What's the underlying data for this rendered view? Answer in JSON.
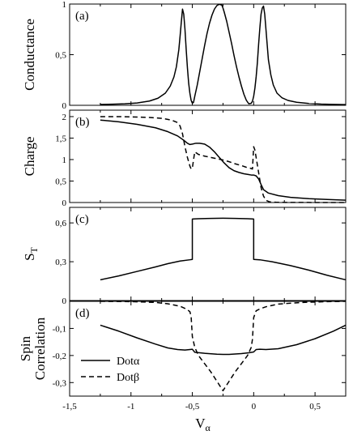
{
  "chart_data": [
    {
      "type": "line",
      "panel_label": "(a)",
      "ylabel": "Conductance",
      "xlim": [
        -1.5,
        0.75
      ],
      "ylim": [
        0,
        1
      ],
      "yticks": [
        0,
        0.5,
        1
      ],
      "ytick_labels": [
        "0",
        "0,5",
        "1"
      ],
      "series": [
        {
          "style": "solid",
          "x": [
            -1.25,
            -1.15,
            -1.05,
            -0.95,
            -0.85,
            -0.78,
            -0.72,
            -0.68,
            -0.65,
            -0.63,
            -0.61,
            -0.6,
            -0.59,
            -0.58,
            -0.57,
            -0.56,
            -0.55,
            -0.54,
            -0.53,
            -0.52,
            -0.51,
            -0.5,
            -0.49,
            -0.48,
            -0.46,
            -0.44,
            -0.42,
            -0.4,
            -0.38,
            -0.36,
            -0.34,
            -0.32,
            -0.3,
            -0.28,
            -0.26,
            -0.25,
            -0.24,
            -0.22,
            -0.2,
            -0.18,
            -0.16,
            -0.14,
            -0.12,
            -0.1,
            -0.08,
            -0.06,
            -0.04,
            -0.02,
            -0.01,
            0.0,
            0.01,
            0.02,
            0.03,
            0.04,
            0.05,
            0.06,
            0.07,
            0.08,
            0.09,
            0.1,
            0.11,
            0.12,
            0.14,
            0.16,
            0.19,
            0.23,
            0.28,
            0.35,
            0.45,
            0.55,
            0.65,
            0.75
          ],
          "y": [
            0.008,
            0.011,
            0.015,
            0.023,
            0.042,
            0.07,
            0.12,
            0.19,
            0.28,
            0.38,
            0.55,
            0.68,
            0.82,
            0.95,
            0.9,
            0.75,
            0.55,
            0.37,
            0.22,
            0.12,
            0.05,
            0.02,
            0.03,
            0.09,
            0.2,
            0.33,
            0.46,
            0.59,
            0.71,
            0.81,
            0.89,
            0.95,
            0.985,
            0.998,
            0.99,
            0.96,
            0.92,
            0.83,
            0.72,
            0.61,
            0.49,
            0.38,
            0.28,
            0.19,
            0.11,
            0.05,
            0.015,
            0.02,
            0.04,
            0.09,
            0.17,
            0.28,
            0.42,
            0.6,
            0.76,
            0.9,
            0.96,
            0.98,
            0.9,
            0.75,
            0.6,
            0.45,
            0.3,
            0.2,
            0.12,
            0.075,
            0.048,
            0.03,
            0.018,
            0.012,
            0.009,
            0.007
          ]
        }
      ]
    },
    {
      "type": "line",
      "panel_label": "(b)",
      "ylabel": "Charge",
      "xlim": [
        -1.5,
        0.75
      ],
      "ylim": [
        0,
        2.15
      ],
      "yticks": [
        0,
        0.5,
        1,
        1.5,
        2
      ],
      "ytick_labels": [
        "0",
        "0,5",
        "1",
        "1,5",
        "2"
      ],
      "series": [
        {
          "name": "Dotα",
          "style": "solid",
          "x": [
            -1.25,
            -1.1,
            -0.95,
            -0.8,
            -0.7,
            -0.62,
            -0.57,
            -0.54,
            -0.52,
            -0.5,
            -0.47,
            -0.44,
            -0.4,
            -0.36,
            -0.32,
            -0.28,
            -0.24,
            -0.2,
            -0.16,
            -0.12,
            -0.08,
            -0.04,
            -0.02,
            0.0,
            0.02,
            0.04,
            0.06,
            0.08,
            0.12,
            0.2,
            0.3,
            0.45,
            0.6,
            0.75
          ],
          "y": [
            1.92,
            1.88,
            1.82,
            1.74,
            1.65,
            1.55,
            1.45,
            1.38,
            1.35,
            1.36,
            1.38,
            1.38,
            1.36,
            1.29,
            1.18,
            1.05,
            0.92,
            0.81,
            0.74,
            0.7,
            0.67,
            0.65,
            0.64,
            0.64,
            0.62,
            0.55,
            0.42,
            0.3,
            0.22,
            0.16,
            0.12,
            0.09,
            0.07,
            0.055
          ]
        },
        {
          "name": "Dotβ",
          "style": "dashed",
          "x": [
            -1.25,
            -1.1,
            -0.95,
            -0.85,
            -0.75,
            -0.67,
            -0.62,
            -0.6,
            -0.58,
            -0.56,
            -0.54,
            -0.52,
            -0.51,
            -0.5,
            -0.49,
            -0.48,
            -0.45,
            -0.4,
            -0.35,
            -0.3,
            -0.25,
            -0.2,
            -0.15,
            -0.1,
            -0.06,
            -0.03,
            -0.01,
            0.0,
            0.01,
            0.02,
            0.04,
            0.06,
            0.08,
            0.1,
            0.13,
            0.18,
            0.25,
            0.35,
            0.5,
            0.75
          ],
          "y": [
            2.0,
            2.0,
            1.99,
            1.98,
            1.96,
            1.92,
            1.86,
            1.78,
            1.6,
            1.3,
            1.05,
            0.85,
            0.78,
            0.8,
            1.0,
            1.18,
            1.12,
            1.08,
            1.05,
            1.02,
            0.99,
            0.95,
            0.9,
            0.86,
            0.82,
            0.8,
            0.78,
            1.3,
            1.22,
            1.05,
            0.7,
            0.35,
            0.15,
            0.05,
            0.015,
            0.006,
            0.003,
            0.002,
            0.001,
            0.0
          ]
        }
      ]
    },
    {
      "type": "line",
      "panel_label": "(c)",
      "ylabel": "S",
      "ylabel_sub": "T",
      "xlim": [
        -1.5,
        0.75
      ],
      "ylim": [
        0,
        0.72
      ],
      "yticks": [
        0,
        0.3,
        0.6
      ],
      "ytick_labels": [
        "0",
        "0,3",
        "0,6"
      ],
      "series": [
        {
          "style": "solid",
          "x": [
            -1.25,
            -1.1,
            -0.95,
            -0.8,
            -0.7,
            -0.6,
            -0.52,
            -0.5,
            -0.5,
            -0.45,
            -0.35,
            -0.25,
            -0.15,
            -0.05,
            0.0,
            0.0,
            0.05,
            0.15,
            0.3,
            0.45,
            0.6,
            0.75
          ],
          "y": [
            0.16,
            0.19,
            0.225,
            0.26,
            0.285,
            0.305,
            0.315,
            0.318,
            0.63,
            0.632,
            0.635,
            0.636,
            0.635,
            0.632,
            0.63,
            0.318,
            0.315,
            0.3,
            0.27,
            0.235,
            0.195,
            0.16
          ]
        }
      ]
    },
    {
      "type": "line",
      "panel_label": "(d)",
      "ylabel": "Spin",
      "ylabel2": "Correlation",
      "xlabel": "V",
      "xlabel_sub": "α",
      "xlim": [
        -1.5,
        0.75
      ],
      "ylim": [
        -0.35,
        0.0
      ],
      "yticks": [
        -0.3,
        -0.2,
        -0.1
      ],
      "ytick_labels": [
        "-0,3",
        "-0,2",
        "-0,1"
      ],
      "xticks": [
        -1.5,
        -1,
        -0.5,
        0,
        0.5
      ],
      "xtick_labels": [
        "-1,5",
        "-1",
        "-0,5",
        "0",
        "0,5"
      ],
      "legend": {
        "position": "bottom-left",
        "entries": [
          {
            "label": "Dotα",
            "style": "solid"
          },
          {
            "label": "Dotβ",
            "style": "dashed"
          }
        ]
      },
      "series": [
        {
          "name": "Dotα",
          "style": "solid",
          "x": [
            -1.25,
            -1.1,
            -0.95,
            -0.8,
            -0.7,
            -0.62,
            -0.56,
            -0.52,
            -0.5,
            -0.48,
            -0.4,
            -0.3,
            -0.25,
            -0.2,
            -0.1,
            -0.04,
            0.0,
            0.02,
            0.05,
            0.1,
            0.2,
            0.35,
            0.5,
            0.65,
            0.75
          ],
          "y": [
            -0.088,
            -0.11,
            -0.135,
            -0.158,
            -0.172,
            -0.178,
            -0.18,
            -0.178,
            -0.177,
            -0.188,
            -0.192,
            -0.195,
            -0.196,
            -0.196,
            -0.193,
            -0.19,
            -0.187,
            -0.178,
            -0.177,
            -0.178,
            -0.175,
            -0.16,
            -0.138,
            -0.11,
            -0.088
          ]
        },
        {
          "name": "Dotβ",
          "style": "dashed",
          "x": [
            -1.25,
            -1.0,
            -0.8,
            -0.7,
            -0.6,
            -0.55,
            -0.52,
            -0.51,
            -0.5,
            -0.48,
            -0.45,
            -0.4,
            -0.35,
            -0.3,
            -0.25,
            -0.2,
            -0.15,
            -0.1,
            -0.05,
            -0.02,
            -0.01,
            0.0,
            0.02,
            0.05,
            0.1,
            0.2,
            0.4,
            0.6,
            0.75
          ],
          "y": [
            0.0,
            -0.001,
            -0.004,
            -0.009,
            -0.018,
            -0.028,
            -0.038,
            -0.055,
            -0.13,
            -0.17,
            -0.2,
            -0.23,
            -0.26,
            -0.295,
            -0.33,
            -0.295,
            -0.26,
            -0.23,
            -0.2,
            -0.17,
            -0.14,
            -0.06,
            -0.035,
            -0.028,
            -0.02,
            -0.01,
            -0.004,
            -0.001,
            0.0
          ]
        }
      ]
    }
  ]
}
